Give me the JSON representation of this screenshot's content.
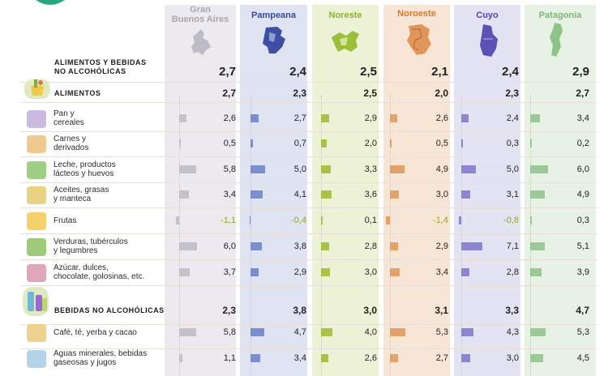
{
  "chart_data": {
    "type": "table",
    "regions": [
      "Gran Buenos Aires",
      "Pampeana",
      "Noreste",
      "Noroeste",
      "Cuyo",
      "Patagonia"
    ],
    "region_colors": [
      "#c4c2c9",
      "#7b8fce",
      "#a9c34a",
      "#e2a36a",
      "#8a86cf",
      "#9cc897"
    ],
    "region_header_colors": [
      "#a9a7ae",
      "#3b4a9d",
      "#8ab52a",
      "#d3792d",
      "#4f46b0",
      "#7fb57a"
    ],
    "column_bg": [
      "#eceaee",
      "#dfe3f2",
      "#edf2d6",
      "#f7e6d6",
      "#e4e3f3",
      "#e7f1e4"
    ],
    "total": {
      "label": "ALIMENTOS Y BEBIDAS NO ALCOHÓLICAS",
      "label_line1": "ALIMENTOS Y BEBIDAS",
      "label_line2": "NO ALCOHÓLICAS",
      "values": [
        "2,7",
        "2,4",
        "2,5",
        "2,1",
        "2,4",
        "2,9"
      ]
    },
    "sections": [
      {
        "label": "ALIMENTOS",
        "values": [
          "2,7",
          "2,3",
          "2,5",
          "2,0",
          "2,3",
          "2,7"
        ],
        "rows": [
          {
            "line1": "Pan y",
            "line2": "cereales",
            "values": [
              "2,6",
              "2,7",
              "2,9",
              "2,6",
              "2,4",
              "3,4"
            ],
            "nums": [
              2.6,
              2.7,
              2.9,
              2.6,
              2.4,
              3.4
            ]
          },
          {
            "line1": "Carnes y",
            "line2": "derivados",
            "values": [
              "0,5",
              "0,7",
              "2,0",
              "0,5",
              "0,3",
              "0,2"
            ],
            "nums": [
              0.5,
              0.7,
              2.0,
              0.5,
              0.3,
              0.2
            ]
          },
          {
            "line1": "Leche, productos",
            "line2": "lácteos y huevos",
            "values": [
              "5,8",
              "5,0",
              "3,3",
              "4,9",
              "5,0",
              "6,0"
            ],
            "nums": [
              5.8,
              5.0,
              3.3,
              4.9,
              5.0,
              6.0
            ]
          },
          {
            "line1": "Aceites, grasas",
            "line2": "y manteca",
            "values": [
              "3,4",
              "4,1",
              "3,6",
              "3,0",
              "3,1",
              "4,9"
            ],
            "nums": [
              3.4,
              4.1,
              3.6,
              3.0,
              3.1,
              4.9
            ]
          },
          {
            "line1": "Frutas",
            "line2": "",
            "values": [
              "-1,1",
              "-0,4",
              "0,1",
              "-1,4",
              "-0,8",
              "0,3"
            ],
            "nums": [
              -1.1,
              -0.4,
              0.1,
              -1.4,
              -0.8,
              0.3
            ]
          },
          {
            "line1": "Verduras, tubérculos",
            "line2": "y legumbres",
            "values": [
              "6,0",
              "3,8",
              "2,8",
              "2,9",
              "7,1",
              "5,1"
            ],
            "nums": [
              6.0,
              3.8,
              2.8,
              2.9,
              7.1,
              5.1
            ]
          },
          {
            "line1": "Azúcar, dulces,",
            "line2": "chocolate, golosinas, etc.",
            "values": [
              "3,7",
              "2,9",
              "3,0",
              "3,4",
              "2,8",
              "3,9"
            ],
            "nums": [
              3.7,
              2.9,
              3.0,
              3.4,
              2.8,
              3.9
            ]
          }
        ]
      },
      {
        "label": "BEBIDAS NO ALCOHÓLICAS",
        "values": [
          "2,3",
          "3,8",
          "3,0",
          "3,1",
          "3,3",
          "4,7"
        ],
        "rows": [
          {
            "line1": "Café, té, yerba y cacao",
            "line2": "",
            "values": [
              "5,8",
              "4,7",
              "4,0",
              "5,3",
              "4,3",
              "5,3"
            ],
            "nums": [
              5.8,
              4.7,
              4.0,
              5.3,
              4.3,
              5.3
            ]
          },
          {
            "line1": "Aguas minerales, bebidas",
            "line2": "gaseosas y jugos",
            "values": [
              "1,1",
              "3,4",
              "2,6",
              "2,7",
              "3,0",
              "4,5"
            ],
            "nums": [
              1.1,
              3.4,
              2.6,
              2.7,
              3.0,
              4.5
            ]
          }
        ]
      }
    ],
    "region_header_lines": [
      [
        "Gran",
        "Buenos Aires"
      ],
      [
        "Pampeana"
      ],
      [
        "Noreste"
      ],
      [
        "Noroeste"
      ],
      [
        "Cuyo"
      ],
      [
        "Patagonia"
      ]
    ]
  }
}
